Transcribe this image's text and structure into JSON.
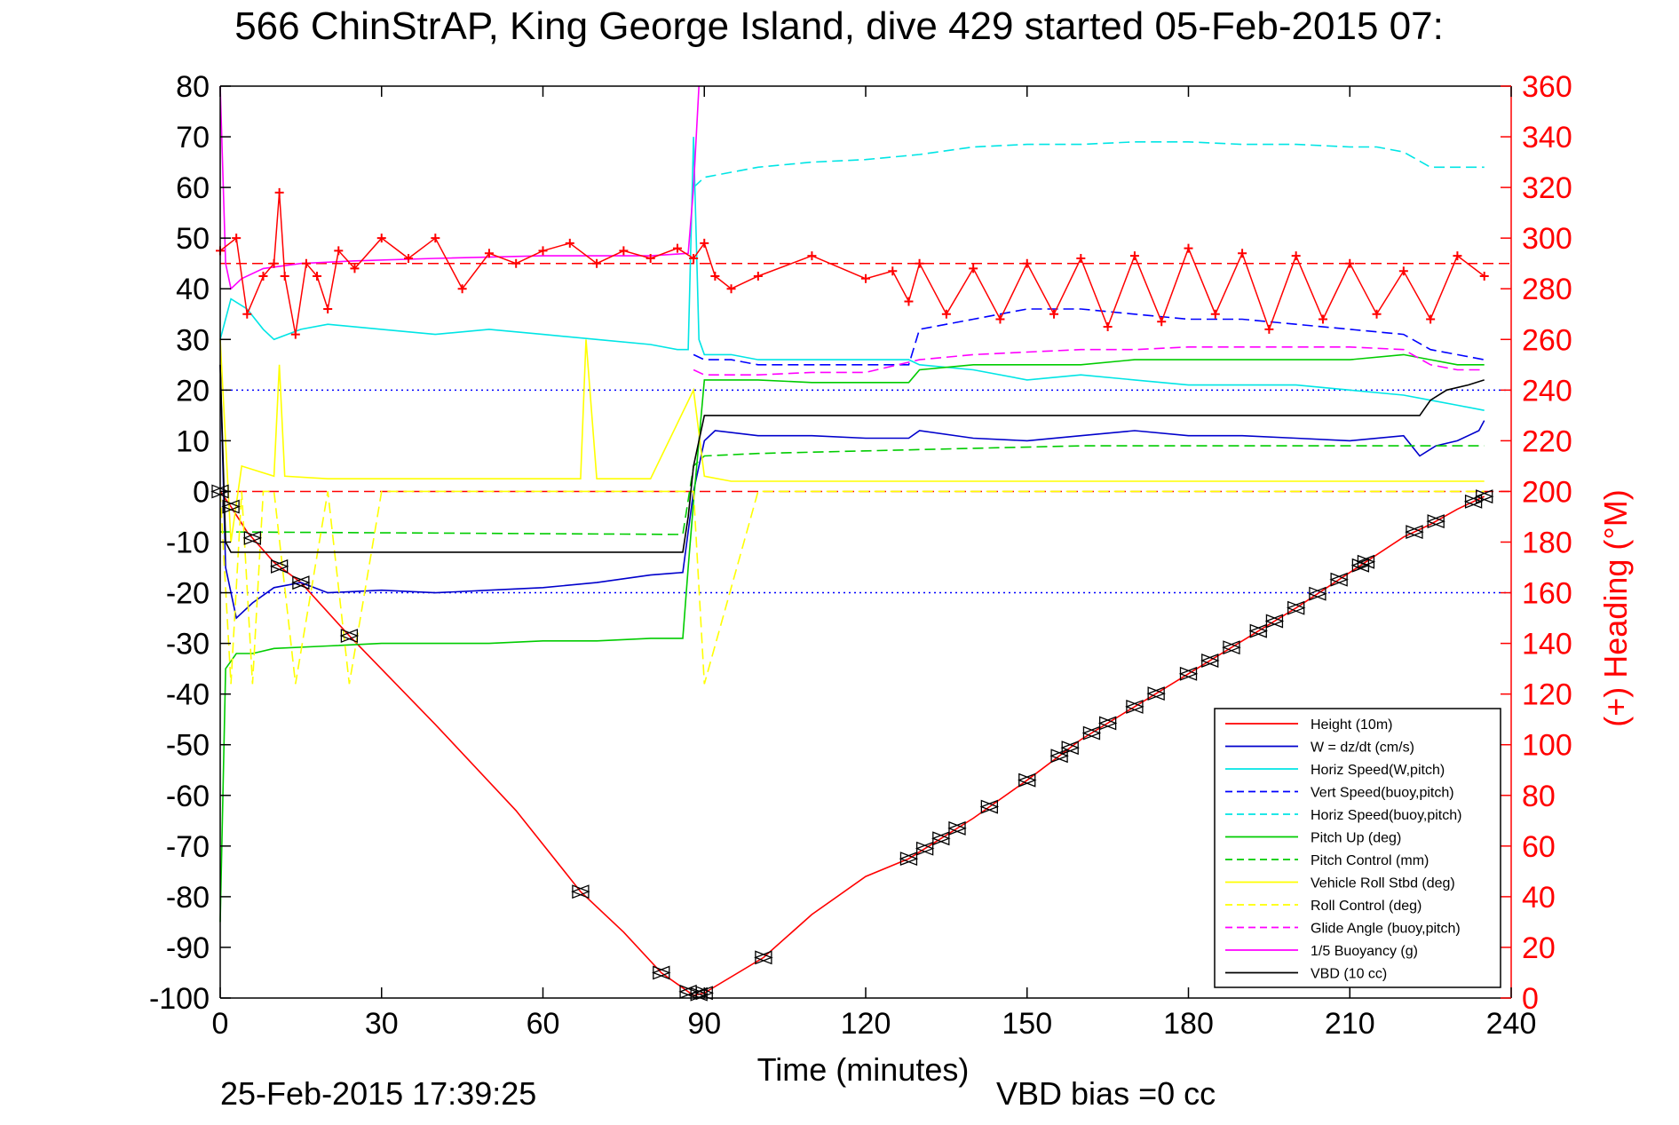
{
  "chart_data": {
    "type": "line",
    "title": "566 ChinStrAP, King George Island, dive 429 started 05-Feb-2015 07:",
    "xlabel": "Time (minutes)",
    "ylabel": "",
    "y2label": "(+) Heading (°M)",
    "xlim": [
      0,
      240
    ],
    "ylim": [
      -100,
      80
    ],
    "y2lim": [
      0,
      360
    ],
    "xticks": [
      0,
      30,
      60,
      90,
      120,
      150,
      180,
      210,
      240
    ],
    "yticks": [
      80,
      70,
      60,
      50,
      40,
      30,
      20,
      10,
      0,
      -10,
      -20,
      -30,
      -40,
      -50,
      -60,
      -70,
      -80,
      -90,
      -100
    ],
    "y2ticks": [
      360,
      340,
      320,
      300,
      280,
      260,
      240,
      220,
      200,
      180,
      160,
      140,
      120,
      100,
      80,
      60,
      40,
      20,
      0
    ],
    "footer_left": "25-Feb-2015 17:39:25",
    "footer_right": "VBD bias =0 cc",
    "legend_position": "lower-right",
    "grid": "horizontal dotted lines at y = 20 and y = -20",
    "reference_lines": [
      {
        "y": 20,
        "color": "#0000ff",
        "style": "dotted"
      },
      {
        "y": -20,
        "color": "#0000ff",
        "style": "dotted"
      },
      {
        "y": 0,
        "color": "#ff0000",
        "style": "dashed"
      },
      {
        "y2": 290,
        "color": "#ff0000",
        "style": "dashed"
      }
    ],
    "series": [
      {
        "name": "Height (10m)",
        "color": "#ff0000",
        "dash": "solid",
        "x": [
          0,
          2,
          5,
          10,
          15,
          24,
          40,
          55,
          67,
          75,
          82,
          88,
          90,
          101,
          110,
          120,
          128,
          140,
          150,
          160,
          170,
          180,
          190,
          200,
          210,
          220,
          225,
          230,
          235
        ],
        "y": [
          0,
          -3,
          -8,
          -14,
          -18,
          -28.5,
          -46,
          -63,
          -79,
          -87,
          -95,
          -99.5,
          -99,
          -92,
          -83.5,
          -76,
          -72.5,
          -64.5,
          -57,
          -49,
          -42.5,
          -36,
          -29.5,
          -23,
          -16,
          -9,
          -6.5,
          -3.5,
          -1
        ]
      },
      {
        "name": "W = dz/dt (cm/s)",
        "color": "#0000cc",
        "dash": "solid",
        "x": [
          0,
          1,
          3,
          6,
          10,
          15,
          20,
          30,
          40,
          50,
          60,
          70,
          80,
          86,
          88,
          90,
          92,
          100,
          110,
          120,
          128,
          130,
          140,
          150,
          160,
          170,
          180,
          190,
          200,
          210,
          220,
          223,
          226,
          230,
          234,
          235
        ],
        "y": [
          25,
          -15,
          -25,
          -22,
          -19,
          -18,
          -20,
          -19.5,
          -20,
          -19.5,
          -19,
          -18,
          -16.5,
          -16,
          0,
          10,
          12,
          11,
          11,
          10.5,
          10.5,
          12,
          10.5,
          10,
          11,
          12,
          11,
          11,
          10.5,
          10,
          11,
          7,
          9,
          10,
          12,
          14
        ]
      },
      {
        "name": "Horiz Speed(W,pitch)",
        "color": "#00e5e5",
        "dash": "solid",
        "x": [
          0,
          2,
          5,
          8,
          10,
          15,
          20,
          30,
          40,
          50,
          60,
          70,
          80,
          85,
          87,
          88,
          89,
          90,
          95,
          100,
          110,
          120,
          128,
          130,
          140,
          150,
          160,
          170,
          180,
          190,
          200,
          210,
          220,
          225,
          230,
          235
        ],
        "y": [
          30,
          38,
          36,
          32,
          30,
          32,
          33,
          32,
          31,
          32,
          31,
          30,
          29,
          28,
          28,
          70,
          30,
          27,
          27,
          26,
          26,
          26,
          26,
          25,
          24,
          22,
          23,
          22,
          21,
          21,
          21,
          20,
          19,
          18,
          17,
          16
        ]
      },
      {
        "name": "Vert Speed(buoy,pitch)",
        "color": "#0000ff",
        "dash": "dashed",
        "x": [
          88,
          90,
          95,
          100,
          110,
          120,
          128,
          130,
          140,
          150,
          160,
          170,
          180,
          190,
          200,
          210,
          220,
          225,
          230,
          235
        ],
        "y": [
          27,
          26,
          26,
          25,
          25,
          25,
          25,
          32,
          34,
          36,
          36,
          35,
          34,
          34,
          33,
          32,
          31,
          28,
          27,
          26
        ]
      },
      {
        "name": "Horiz Speed(buoy,pitch)",
        "color": "#00e5e5",
        "dash": "dashed",
        "x": [
          88,
          90,
          95,
          100,
          110,
          120,
          130,
          140,
          150,
          160,
          170,
          180,
          190,
          200,
          210,
          215,
          220,
          225,
          230,
          235
        ],
        "y": [
          60,
          62,
          63,
          64,
          65,
          65.5,
          66.5,
          68,
          68.5,
          68.5,
          69,
          69,
          68.5,
          68.5,
          68,
          68,
          67,
          64,
          64,
          64
        ]
      },
      {
        "name": "Pitch Up (deg)",
        "color": "#00cc00",
        "dash": "solid",
        "x": [
          0,
          1,
          3,
          6,
          10,
          20,
          30,
          40,
          50,
          60,
          70,
          80,
          86,
          87,
          88,
          90,
          100,
          110,
          120,
          128,
          130,
          140,
          150,
          160,
          170,
          180,
          190,
          200,
          210,
          220,
          225,
          230,
          235
        ],
        "y": [
          -85,
          -35,
          -32,
          -32,
          -31,
          -30.5,
          -30,
          -30,
          -30,
          -29.5,
          -29.5,
          -29,
          -29,
          -15,
          -2,
          22,
          22,
          21.5,
          21.5,
          21.5,
          24,
          25,
          25,
          25,
          26,
          26,
          26,
          26,
          26,
          27,
          26,
          25,
          25
        ]
      },
      {
        "name": "Pitch Control (mm)",
        "color": "#00cc00",
        "dash": "dashed",
        "x": [
          0,
          2,
          86,
          88,
          90,
          100,
          120,
          140,
          160,
          180,
          200,
          220,
          235
        ],
        "y": [
          -8,
          -8,
          -8.5,
          5,
          7,
          7.5,
          8,
          8.5,
          9,
          9,
          9,
          9,
          9
        ]
      },
      {
        "name": "Vehicle Roll Stbd (deg)",
        "color": "#ffff00",
        "dash": "solid",
        "x": [
          0,
          2,
          4,
          10,
          11,
          12,
          20,
          40,
          60,
          67,
          68,
          70,
          80,
          88,
          90,
          95,
          100,
          110,
          120,
          128,
          130,
          140,
          150,
          160,
          170,
          180,
          190,
          200,
          210,
          220,
          225,
          230,
          235
        ],
        "y": [
          30,
          -10,
          5,
          3,
          25,
          3,
          2.5,
          2.5,
          2.5,
          2.5,
          30,
          2.5,
          2.5,
          20,
          3,
          2,
          2,
          2,
          2,
          2,
          2,
          2,
          2,
          2,
          2,
          2,
          2,
          2,
          2,
          2,
          2,
          2,
          2
        ]
      },
      {
        "name": "Roll Control (deg)",
        "color": "#ffff00",
        "dash": "dashed",
        "x": [
          0,
          2,
          4,
          6,
          8,
          10,
          14,
          20,
          24,
          30,
          60,
          88,
          90,
          100,
          120,
          150,
          180,
          210,
          235
        ],
        "y": [
          0,
          -38,
          0,
          -38,
          0,
          0,
          -38,
          0,
          -38,
          0,
          0,
          0,
          -38,
          0,
          0,
          0,
          0,
          0,
          0
        ]
      },
      {
        "name": "Glide Angle (buoy,pitch)",
        "color": "#ff00ff",
        "dash": "dashed",
        "x": [
          88,
          90,
          100,
          110,
          120,
          130,
          140,
          150,
          160,
          170,
          180,
          190,
          200,
          210,
          220,
          225,
          230,
          235
        ],
        "y": [
          24,
          23,
          23,
          23.5,
          23.5,
          26,
          27,
          27.5,
          28,
          28,
          28.5,
          28.5,
          28.5,
          28.5,
          28,
          25,
          24,
          24
        ]
      },
      {
        "name": "1/5 Buoyancy (g)",
        "color": "#ff00ff",
        "dash": "solid",
        "x": [
          0,
          1,
          2,
          4,
          8,
          15,
          25,
          40,
          60,
          80,
          87,
          88,
          89
        ],
        "y": [
          80,
          45,
          40,
          42,
          44,
          45,
          45.5,
          46,
          46.5,
          46.5,
          47,
          60,
          80
        ]
      },
      {
        "name": "VBD (10 cc)",
        "color": "#000000",
        "dash": "solid",
        "x": [
          0,
          1,
          2,
          30,
          60,
          86,
          87,
          88,
          90,
          100,
          140,
          180,
          210,
          223,
          225,
          228,
          232,
          235
        ],
        "y": [
          25,
          -10,
          -12,
          -12,
          -12,
          -12,
          -5,
          5,
          15,
          15,
          15,
          15,
          15,
          15,
          18,
          20,
          21,
          22
        ]
      }
    ],
    "heading_series": {
      "name": "Heading (+)",
      "color": "#ff0000",
      "axis": "right",
      "x": [
        0,
        3,
        5,
        8,
        10,
        11,
        12,
        14,
        16,
        18,
        20,
        22,
        25,
        30,
        35,
        40,
        45,
        50,
        55,
        60,
        65,
        70,
        75,
        80,
        85,
        88,
        90,
        92,
        95,
        100,
        110,
        120,
        125,
        128,
        130,
        135,
        140,
        145,
        150,
        155,
        160,
        165,
        170,
        175,
        180,
        185,
        190,
        195,
        200,
        205,
        210,
        215,
        220,
        225,
        230,
        235
      ],
      "y": [
        295,
        300,
        270,
        285,
        290,
        318,
        285,
        262,
        290,
        285,
        272,
        295,
        288,
        300,
        292,
        300,
        280,
        294,
        290,
        295,
        298,
        290,
        295,
        292,
        296,
        292,
        298,
        285,
        280,
        285,
        293,
        284,
        287,
        275,
        290,
        270,
        288,
        268,
        290,
        270,
        292,
        265,
        293,
        267,
        296,
        270,
        294,
        264,
        293,
        268,
        290,
        270,
        287,
        268,
        293,
        285
      ]
    }
  },
  "legend": {
    "entries": [
      {
        "label": "Height (10m)",
        "color": "#ff0000",
        "dash": "solid"
      },
      {
        "label": "W = dz/dt (cm/s)",
        "color": "#0000cc",
        "dash": "solid"
      },
      {
        "label": "Horiz Speed(W,pitch)",
        "color": "#00e5e5",
        "dash": "solid"
      },
      {
        "label": "Vert Speed(buoy,pitch)",
        "color": "#0000ff",
        "dash": "dashed"
      },
      {
        "label": "Horiz Speed(buoy,pitch)",
        "color": "#00e5e5",
        "dash": "dashed"
      },
      {
        "label": "Pitch Up (deg)",
        "color": "#00cc00",
        "dash": "solid"
      },
      {
        "label": "Pitch Control (mm)",
        "color": "#00cc00",
        "dash": "dashed"
      },
      {
        "label": "Vehicle Roll Stbd (deg)",
        "color": "#ffff00",
        "dash": "solid"
      },
      {
        "label": "Roll Control (deg)",
        "color": "#ffff00",
        "dash": "dashed"
      },
      {
        "label": "Glide Angle (buoy,pitch)",
        "color": "#ff00ff",
        "dash": "dashed"
      },
      {
        "label": "1/5 Buoyancy (g)",
        "color": "#ff00ff",
        "dash": "solid"
      },
      {
        "label": "VBD (10 cc)",
        "color": "#000000",
        "dash": "solid"
      }
    ]
  },
  "markers": {
    "name": "triangle-markers",
    "color": "#000000",
    "x": [
      0,
      2,
      6,
      11,
      15,
      24,
      67,
      82,
      87,
      89,
      90,
      101,
      128,
      131,
      134,
      137,
      143,
      150,
      156,
      158,
      162,
      165,
      170,
      174,
      180,
      184,
      188,
      193,
      196,
      200,
      204,
      208,
      212,
      213,
      222,
      226,
      233,
      235
    ]
  },
  "colors": {
    "left_axis": "#000000",
    "right_axis": "#ff0000",
    "background": "#ffffff"
  }
}
